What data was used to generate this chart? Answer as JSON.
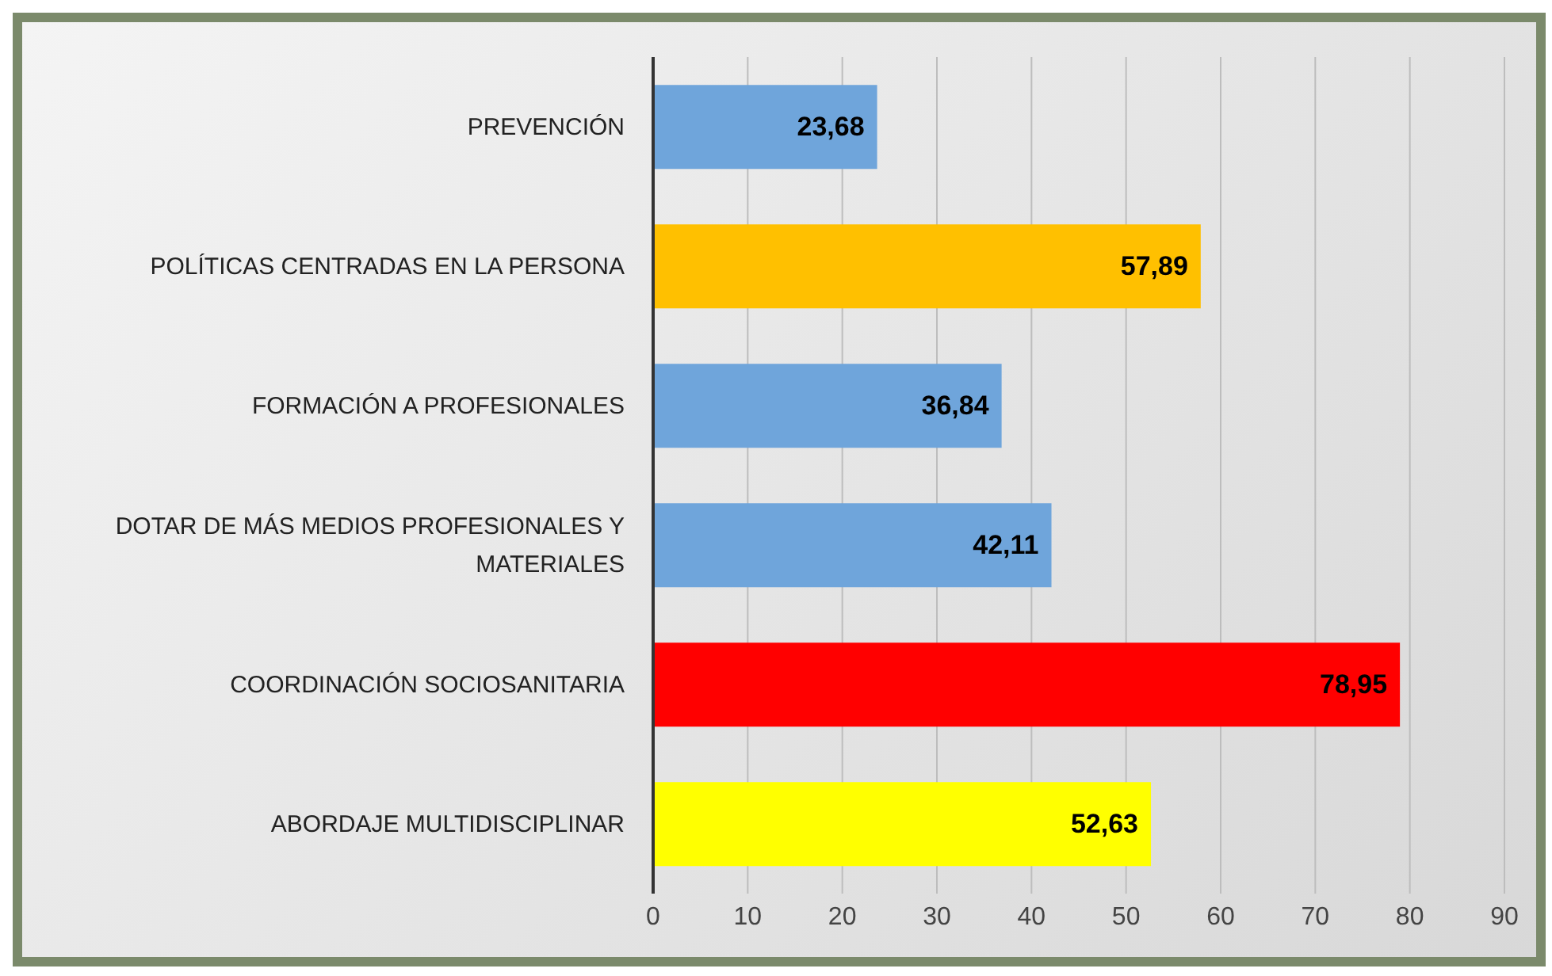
{
  "chart_data": {
    "type": "bar",
    "orientation": "horizontal",
    "categories": [
      "PREVENCIÓN",
      "POLÍTICAS CENTRADAS EN LA PERSONA",
      "FORMACIÓN A PROFESIONALES",
      "DOTAR DE MÁS MEDIOS PROFESIONALES Y MATERIALES",
      "COORDINACIÓN SOCIOSANITARIA",
      "ABORDAJE MULTIDISCIPLINAR"
    ],
    "values": [
      23.68,
      57.89,
      36.84,
      42.11,
      78.95,
      52.63
    ],
    "colors": [
      "#6fa5db",
      "#ffc000",
      "#6fa5db",
      "#6fa5db",
      "#ff0000",
      "#ffff00"
    ],
    "value_labels": [
      "23,68",
      "57,89",
      "36,84",
      "42,11",
      "78,95",
      "52,63"
    ],
    "xlim": [
      0,
      90
    ],
    "xticks": [
      0,
      10,
      20,
      30,
      40,
      50,
      60,
      70,
      80,
      90
    ],
    "grid": "x"
  }
}
